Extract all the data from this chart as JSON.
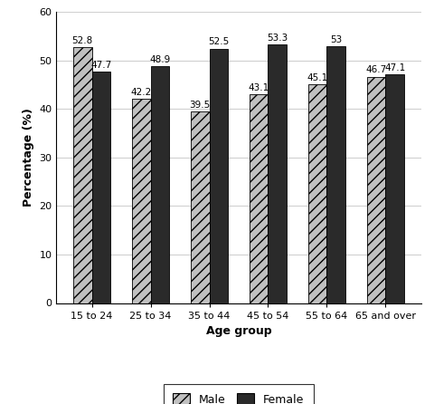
{
  "categories": [
    "15 to 24",
    "25 to 34",
    "35 to 44",
    "45 to 54",
    "55 to 64",
    "65 and over"
  ],
  "male_values": [
    52.8,
    42.2,
    39.5,
    43.1,
    45.1,
    46.7
  ],
  "female_values": [
    47.7,
    48.9,
    52.5,
    53.3,
    53,
    47.1
  ],
  "male_label_values": [
    "52.8",
    "42.2",
    "39.5",
    "43.1",
    "45.1",
    "46.7"
  ],
  "female_label_values": [
    "47.7",
    "48.9",
    "52.5",
    "53.3",
    "53",
    "47.1"
  ],
  "male_color": "#c0c0c0",
  "male_hatch": "///",
  "female_color": "#2a2a2a",
  "female_hatch": "",
  "ylabel": "Percentage (%)",
  "xlabel": "Age group",
  "ylim": [
    0,
    60
  ],
  "yticks": [
    0,
    10,
    20,
    30,
    40,
    50,
    60
  ],
  "bar_width": 0.32,
  "label_fontsize": 7.5,
  "axis_label_fontsize": 9,
  "tick_fontsize": 8,
  "legend_labels": [
    "Male",
    "Female"
  ],
  "background_color": "#ffffff",
  "grid_color": "#d0d0d0"
}
